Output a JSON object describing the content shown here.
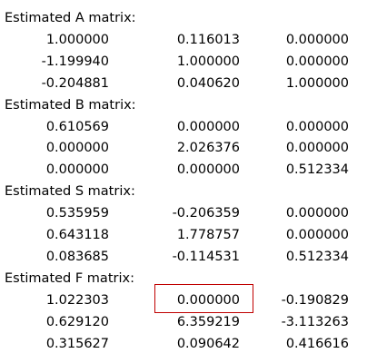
{
  "matrices": [
    {
      "title": "Estimated A matrix:",
      "rows": [
        [
          "1.000000",
          "0.116013",
          "0.000000"
        ],
        [
          "-1.199940",
          "1.000000",
          "0.000000"
        ],
        [
          "-0.204881",
          "0.040620",
          "1.000000"
        ]
      ]
    },
    {
      "title": "Estimated B matrix:",
      "rows": [
        [
          "0.610569",
          "0.000000",
          "0.000000"
        ],
        [
          "0.000000",
          "2.026376",
          "0.000000"
        ],
        [
          "0.000000",
          "0.000000",
          "0.512334"
        ]
      ]
    },
    {
      "title": "Estimated S matrix:",
      "rows": [
        [
          "0.535959",
          "-0.206359",
          "0.000000"
        ],
        [
          "0.643118",
          "1.778757",
          "0.000000"
        ],
        [
          "0.083685",
          "-0.114531",
          "0.512334"
        ]
      ]
    },
    {
      "title": "Estimated F matrix:",
      "rows": [
        [
          "1.022303",
          "0.000000",
          "-0.190829"
        ],
        [
          "0.629120",
          "6.359219",
          "-3.113263"
        ],
        [
          "0.315627",
          "0.090642",
          "0.416616"
        ]
      ]
    }
  ]
}
